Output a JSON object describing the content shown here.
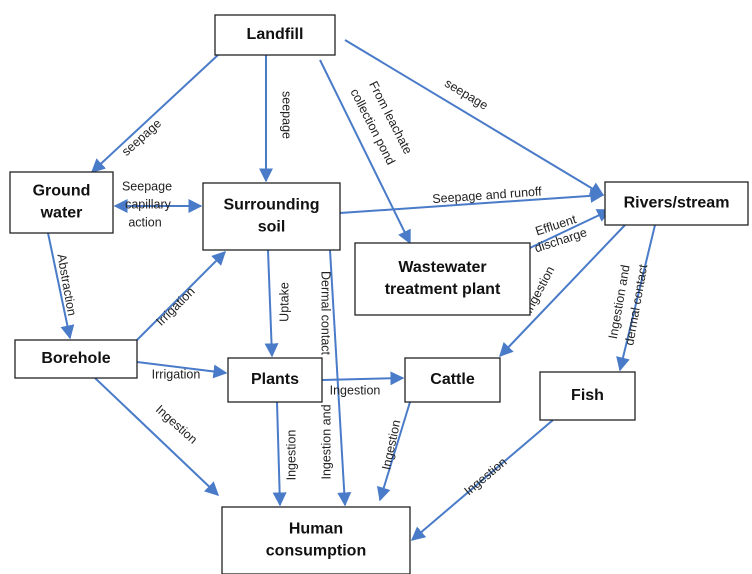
{
  "nodes": [
    {
      "label": [
        "Landfill"
      ]
    },
    {
      "label": [
        "Ground",
        "water"
      ]
    },
    {
      "label": [
        "Surrounding",
        "soil"
      ]
    },
    {
      "label": [
        "Rivers/stream"
      ]
    },
    {
      "label": [
        "Wastewater",
        "treatment plant"
      ]
    },
    {
      "label": [
        "Borehole"
      ]
    },
    {
      "label": [
        "Plants"
      ]
    },
    {
      "label": [
        "Cattle"
      ]
    },
    {
      "label": [
        "Fish"
      ]
    },
    {
      "label": [
        "Human",
        "consumption"
      ]
    }
  ],
  "edges": [
    {
      "label": [
        "seepage"
      ]
    },
    {
      "label": [
        "seepage"
      ]
    },
    {
      "label": [
        "From leachate",
        "collection pond"
      ]
    },
    {
      "label": [
        "seepage"
      ]
    },
    {
      "label": [
        "Seepage and runoff"
      ]
    },
    {
      "label": [
        "Seepage",
        "capillary",
        "action"
      ]
    },
    {
      "label": [
        "Effluent",
        "discharge"
      ]
    },
    {
      "label": [
        "Abstraction"
      ]
    },
    {
      "label": [
        "Irrigation"
      ]
    },
    {
      "label": [
        "Irrigation"
      ]
    },
    {
      "label": [
        "Ingestion"
      ]
    },
    {
      "label": [
        "Uptake"
      ]
    },
    {
      "label": [
        "Dermal contact",
        "Ingestion and"
      ]
    },
    {
      "label": [
        "Ingestion"
      ]
    },
    {
      "label": [
        "Ingestion"
      ]
    },
    {
      "label": [
        "Ingestion and",
        "dermal contact"
      ]
    },
    {
      "label": [
        "Ingestion"
      ]
    },
    {
      "label": [
        "Ingestion"
      ]
    },
    {
      "label": [
        "Ingestion"
      ]
    }
  ]
}
